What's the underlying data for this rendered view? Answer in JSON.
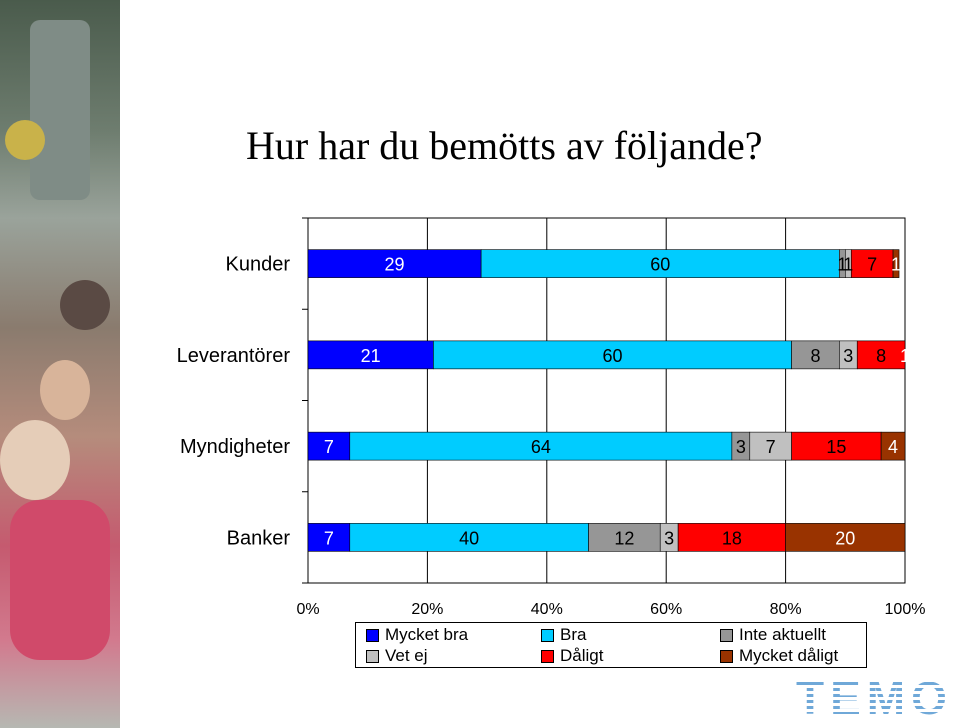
{
  "title": "Hur har du bemötts av följande?",
  "logo_text": "TEMO",
  "chart_data": {
    "type": "bar",
    "orientation": "horizontal",
    "stacked": true,
    "percent_stacked": true,
    "categories": [
      "Kunder",
      "Leverantörer",
      "Myndigheter",
      "Banker"
    ],
    "series": [
      {
        "name": "Mycket bra",
        "color": "#0000ff",
        "values": [
          29,
          21,
          7,
          7
        ]
      },
      {
        "name": "Bra",
        "color": "#00ccff",
        "values": [
          60,
          60,
          64,
          40
        ]
      },
      {
        "name": "Inte aktuellt",
        "color": "#969696",
        "values": [
          1,
          8,
          3,
          12
        ]
      },
      {
        "name": "Vet ej",
        "color": "#c0c0c0",
        "values": [
          1,
          3,
          7,
          3
        ]
      },
      {
        "name": "Dåligt",
        "color": "#ff0000",
        "values": [
          7,
          8,
          15,
          18
        ]
      },
      {
        "name": "Mycket dåligt",
        "color": "#993300",
        "values": [
          1,
          1,
          4,
          20
        ]
      }
    ],
    "xlim": [
      0,
      100
    ],
    "x_ticks": [
      "0%",
      "20%",
      "40%",
      "60%",
      "80%",
      "100%"
    ],
    "grid": "vertical",
    "legend": "bottom"
  }
}
